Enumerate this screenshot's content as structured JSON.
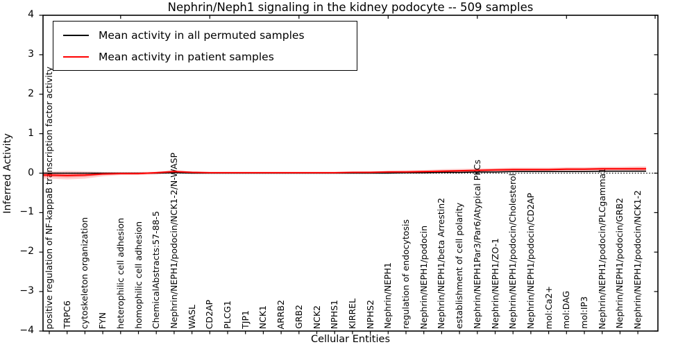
{
  "title": "Nephrin/Neph1 signaling in the kidney podocyte -- 509 samples",
  "axes": {
    "ylabel": "Inferred Activity",
    "xlabel": "Cellular Entities",
    "yticks": [
      "4",
      "3",
      "2",
      "1",
      "0",
      "−1",
      "−2",
      "−3",
      "−4"
    ]
  },
  "legend": [
    {
      "label": "Mean activity in all permuted samples",
      "color": "#000000"
    },
    {
      "label": "Mean activity in patient samples",
      "color": "#ff0000"
    }
  ],
  "colors": {
    "permuted_line": "#000000",
    "patient_line": "#ff0000",
    "patient_band": "#ff0000",
    "zero_line": "#000000"
  },
  "chart_data": {
    "type": "line",
    "title": "Nephrin/Neph1 signaling in the kidney podocyte -- 509 samples",
    "xlabel": "Cellular Entities",
    "ylabel": "Inferred Activity",
    "ylim": [
      -4,
      4
    ],
    "yticks": [
      4,
      3,
      2,
      1,
      0,
      -1,
      -2,
      -3,
      -4
    ],
    "grid": false,
    "legend_position": "upper left",
    "zero_reference_line": "dotted",
    "categories": [
      "positive regulation of NF-kappaB transcription factor activity",
      "TRPC6",
      "cytoskeleton organization",
      "FYN",
      "heterophilic cell adhesion",
      "homophilic cell adhesion",
      "ChemicalAbstracts:57-88-5",
      "Nephrin/NEPH1/podocin/NCK1-2/N-WASP",
      "WASL",
      "CD2AP",
      "PLCG1",
      "TJP1",
      "NCK1",
      "ARRB2",
      "GRB2",
      "NCK2",
      "NPHS1",
      "KIRREL",
      "NPHS2",
      "Nephrin/NEPH1",
      "regulation of endocytosis",
      "Nephrin/NEPH1/podocin",
      "Nephrin/NEPH1/beta Arrestin2",
      "establishment of cell polarity",
      "Nephrin/NEPH1Par3/Par6/Atypical PKCs",
      "Nephrin/NEPH1/ZO-1",
      "Nephrin/NEPH1/podocin/Cholesterol",
      "Nephrin/NEPH1/podocin/CD2AP",
      "mol:Ca2+",
      "mol:DAG",
      "mol:IP3",
      "Nephrin/NEPH1/podocin/PLCgamma1",
      "Nephrin/NEPH1/podocin/GRB2",
      "Nephrin/NEPH1/podocin/NCK1-2"
    ],
    "series": [
      {
        "name": "Mean activity in all permuted samples",
        "color": "#000000",
        "values": [
          0,
          0,
          0,
          0,
          0,
          0,
          0,
          0.01,
          0,
          0,
          0,
          0,
          0,
          0,
          0,
          0,
          0,
          0,
          0,
          0,
          0.01,
          0.01,
          0.02,
          0.02,
          0.03,
          0.03,
          0.04,
          0.04,
          0.04,
          0.04,
          0.04,
          0.05,
          0.05,
          0.05
        ]
      },
      {
        "name": "Mean activity in patient samples",
        "color": "#ff0000",
        "values": [
          -0.05,
          -0.06,
          -0.05,
          -0.02,
          -0.01,
          -0.01,
          0.01,
          0.04,
          0.02,
          0.01,
          0.01,
          0.01,
          0.01,
          0.01,
          0.01,
          0.01,
          0.01,
          0.02,
          0.02,
          0.03,
          0.03,
          0.04,
          0.05,
          0.06,
          0.07,
          0.08,
          0.09,
          0.09,
          0.09,
          0.1,
          0.1,
          0.11,
          0.11,
          0.11
        ],
        "band_upper": [
          0.04,
          0.06,
          0.05,
          0.03,
          0.03,
          0.03,
          0.04,
          0.08,
          0.05,
          0.03,
          0.03,
          0.03,
          0.03,
          0.03,
          0.03,
          0.03,
          0.03,
          0.04,
          0.05,
          0.06,
          0.07,
          0.08,
          0.1,
          0.11,
          0.12,
          0.13,
          0.14,
          0.14,
          0.14,
          0.15,
          0.15,
          0.16,
          0.16,
          0.17
        ],
        "band_lower": [
          -0.14,
          -0.16,
          -0.14,
          -0.08,
          -0.05,
          -0.05,
          -0.03,
          0.0,
          -0.01,
          -0.01,
          -0.01,
          -0.01,
          -0.01,
          -0.01,
          -0.01,
          -0.01,
          -0.01,
          0.0,
          0.0,
          0.0,
          0.0,
          0.01,
          0.01,
          0.02,
          0.02,
          0.03,
          0.04,
          0.04,
          0.04,
          0.05,
          0.05,
          0.05,
          0.05,
          0.04
        ]
      }
    ]
  }
}
